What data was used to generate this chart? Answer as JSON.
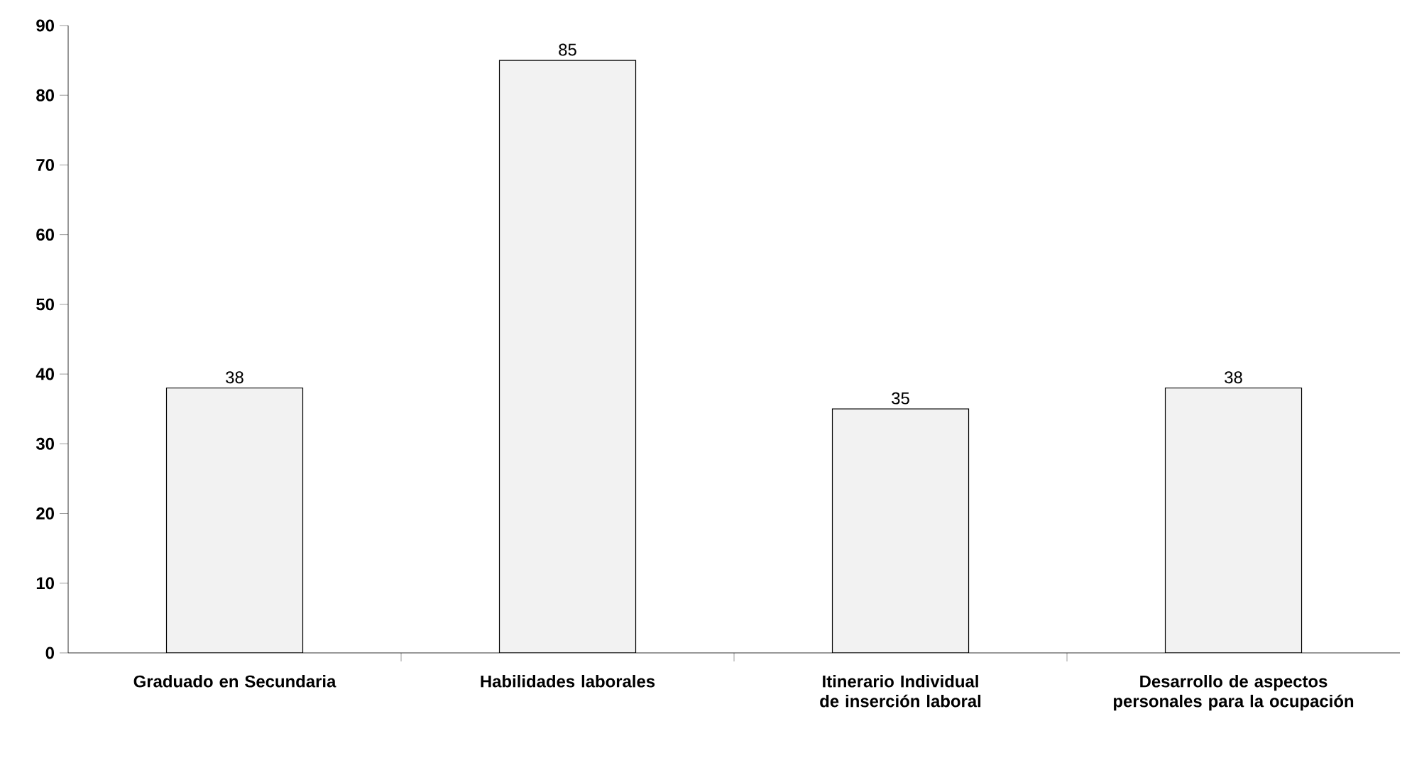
{
  "chart_data": {
    "type": "bar",
    "categories": [
      "Graduado en Secundaria",
      "Habilidades laborales",
      "Itinerario Individual de inserción laboral",
      "Desarrollo de aspectos personales para la ocupación"
    ],
    "values": [
      38,
      85,
      35,
      38
    ],
    "color": "#f2f2f2",
    "ylim": [
      0,
      90
    ],
    "yticks": [
      0,
      10,
      20,
      30,
      40,
      50,
      60,
      70,
      80,
      90
    ],
    "data_labels": true
  }
}
